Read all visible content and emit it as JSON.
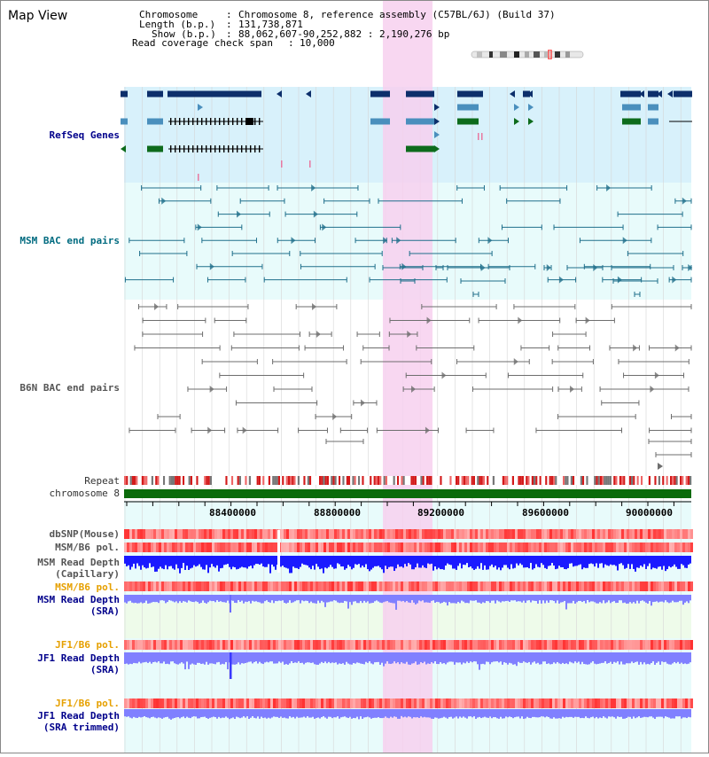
{
  "title": "Map View",
  "header": {
    "chromosome_label": "Chromosome",
    "chromosome_value": "Chromosome 8, reference assembly (C57BL/6J) (Build 37)",
    "length_label": "Length (b.p.)",
    "length_value": "131,738,871",
    "show_label": "Show (b.p.)",
    "show_value": "88,062,607-90,252,882 : 2,190,276 bp",
    "coverage_label": "Read coverage check span",
    "coverage_value": "10,000"
  },
  "tracks": {
    "refseq": "RefSeq Genes",
    "msm_bac": "MSM BAC end pairs",
    "b6n_bac": "B6N BAC end pairs",
    "repeat": "Repeat",
    "chromosome": "chromosome 8"
  },
  "axis": {
    "ticks": [
      "88400000",
      "88800000",
      "89200000",
      "89600000",
      "90000000"
    ]
  },
  "lower_tracks": {
    "dbsnp": "dbSNP(Mouse)",
    "msm_b6_pol_1": "MSM/B6 pol.",
    "msm_depth_cap_1": "MSM Read Depth",
    "msm_depth_cap_2": "(Capillary)",
    "msm_b6_pol_2": "MSM/B6 pol.",
    "msm_depth_sra_1": "MSM Read Depth",
    "msm_depth_sra_2": "(SRA)",
    "jf1_b6_pol_1": "JF1/B6 pol.",
    "jf1_depth_sra_1": "JF1 Read Depth",
    "jf1_depth_sra_2": "(SRA)",
    "jf1_b6_pol_2": "JF1/B6 pol.",
    "jf1_depth_trim_1": "JF1 Read Depth",
    "jf1_depth_trim_2": "(SRA trimmed)"
  },
  "colors": {
    "highlight": "#f7d0ee",
    "refseq_bg": "#d8f1fb",
    "msm_bg": "#e8fbfb",
    "gene_navy": "#0d2f6b",
    "gene_blue": "#4a8fbd",
    "gene_green": "#0d6b1c",
    "bac_msm": "#1f6f8b",
    "bac_b6n": "#6e6e6e",
    "depth_blue": "#1a1aff",
    "depth_light": "#8080ff",
    "pol_red": "#ff5050",
    "label_blue": "#00008b",
    "label_teal": "#006b80",
    "label_gray": "#333333",
    "label_orange": "#e6a000"
  }
}
